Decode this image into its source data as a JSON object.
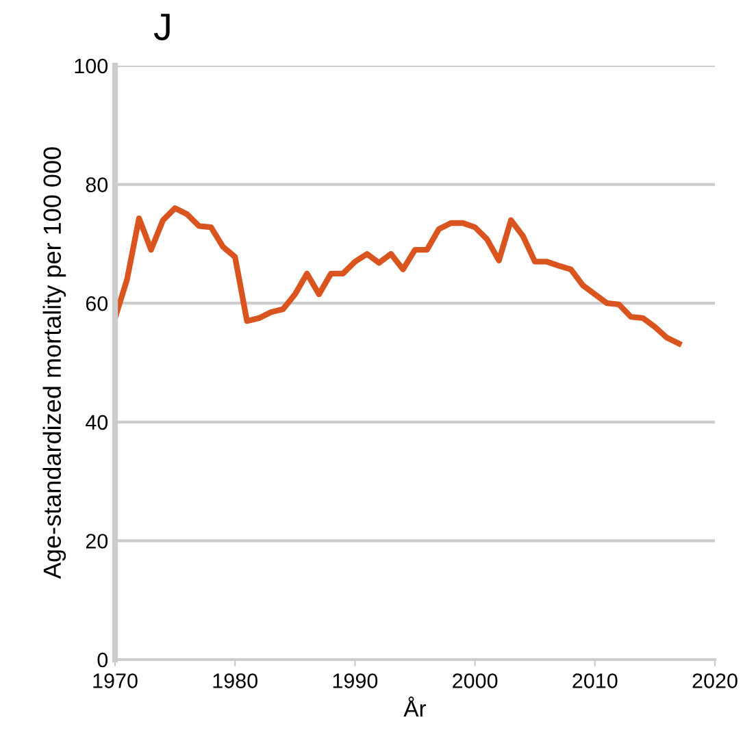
{
  "chart_data": {
    "type": "line",
    "title": "J",
    "xlabel": "År",
    "ylabel": "Age-standardized mortality per 100 000",
    "x": [
      1970,
      1971,
      1972,
      1973,
      1974,
      1975,
      1976,
      1977,
      1978,
      1979,
      1980,
      1981,
      1982,
      1983,
      1984,
      1985,
      1986,
      1987,
      1988,
      1989,
      1990,
      1991,
      1992,
      1993,
      1994,
      1995,
      1996,
      1997,
      1998,
      1999,
      2000,
      2001,
      2002,
      2003,
      2004,
      2005,
      2006,
      2007,
      2008,
      2009,
      2010,
      2011,
      2012,
      2013,
      2014,
      2015,
      2016,
      2017
    ],
    "series": [
      {
        "color": "#d9541e",
        "values": [
          57.5,
          64,
          74.3,
          69,
          74,
          76,
          75,
          73,
          72.8,
          69.5,
          67.8,
          57,
          57.5,
          58.5,
          59,
          61.5,
          65,
          61.5,
          65,
          65,
          67,
          68.3,
          66.8,
          68.3,
          65.7,
          69,
          69,
          72.5,
          73.5,
          73.5,
          72.8,
          70.8,
          67.2,
          74,
          71.3,
          67,
          67,
          66.3,
          65.7,
          63,
          61.5,
          60,
          59.8,
          57.7,
          57.5,
          56,
          54.2,
          53.2
        ]
      }
    ],
    "xlim": [
      1970,
      2020
    ],
    "xticks": [
      1970,
      1980,
      1990,
      2000,
      2010,
      2020
    ],
    "ylim": [
      0,
      100
    ],
    "yticks": [
      0,
      20,
      40,
      60,
      80,
      100
    ],
    "grid": "y",
    "marker": "none",
    "line_style": "solid"
  }
}
